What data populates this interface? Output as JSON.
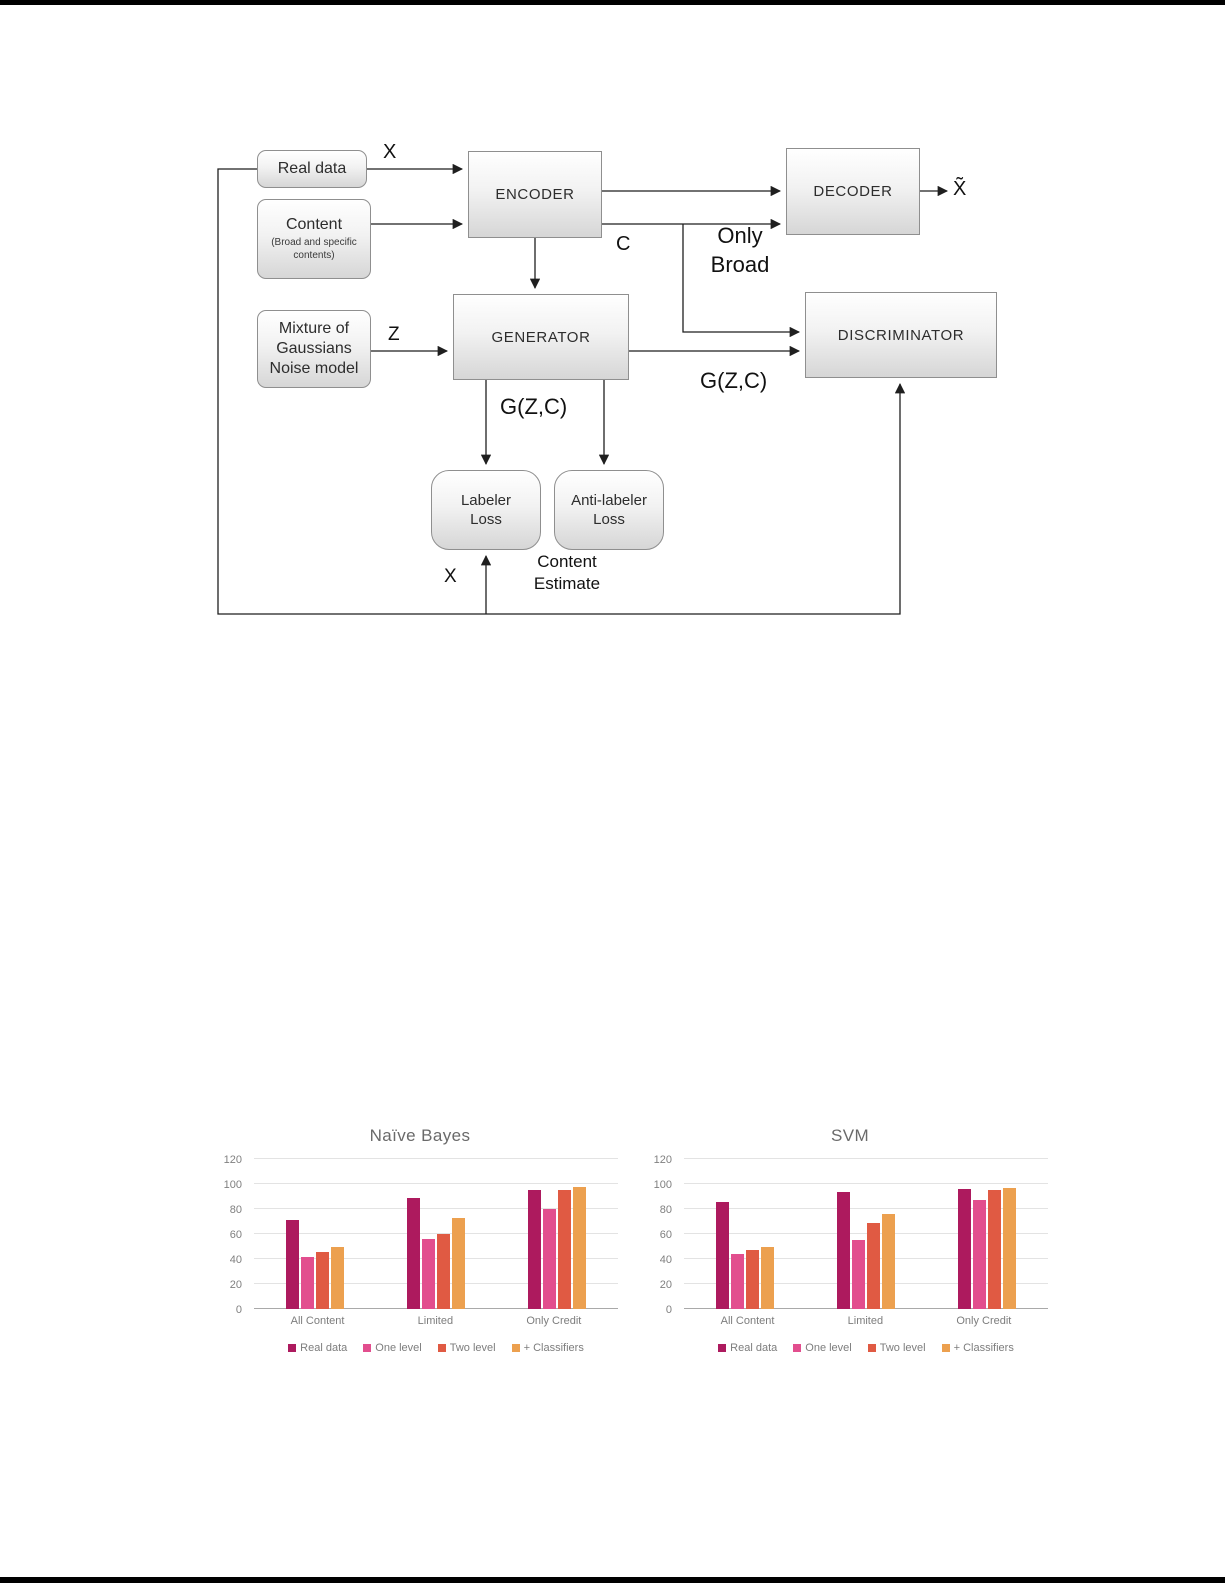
{
  "diagram": {
    "boxes": {
      "real_data": {
        "label": "Real data"
      },
      "content": {
        "title": "Content",
        "subtitle": "(Broad and specific contents)"
      },
      "encoder": {
        "label": "ENCODER"
      },
      "decoder": {
        "label": "DECODER"
      },
      "mixture": {
        "label": "Mixture of Gaussians Noise model"
      },
      "generator": {
        "label": "GENERATOR"
      },
      "discriminator": {
        "label": "DISCRIMINATOR"
      },
      "labeler_loss": {
        "label": "Labeler\nLoss"
      },
      "anti_labeler_loss": {
        "label": "Anti-labeler\nLoss"
      }
    },
    "labels": {
      "x_top": "X",
      "x_tilde": "X̃",
      "c": "C",
      "only_broad": "Only\nBroad",
      "z": "Z",
      "g_zc_generator": "G(Z,C)",
      "g_zc_discriminator": "G(Z,C)",
      "content_estimate": "Content\nEstimate",
      "x_bottom": "X"
    }
  },
  "chart_data": [
    {
      "type": "bar",
      "title": "Naïve Bayes",
      "categories": [
        "All Content",
        "Limited",
        "Only Credit"
      ],
      "series": [
        {
          "name": "Real data",
          "color": "#ad1a5e",
          "values": [
            71,
            89,
            95
          ]
        },
        {
          "name": "One level",
          "color": "#e24e8e",
          "values": [
            42,
            56,
            80
          ]
        },
        {
          "name": "Two level",
          "color": "#e05a43",
          "values": [
            46,
            60,
            95
          ]
        },
        {
          "name": "+ Classifiers",
          "color": "#eca04f",
          "values": [
            50,
            73,
            98
          ]
        }
      ],
      "xlabel": "",
      "ylabel": "",
      "ylim": [
        0,
        120
      ],
      "ytick_step": 20,
      "grid": true,
      "legend_position": "bottom"
    },
    {
      "type": "bar",
      "title": "SVM",
      "categories": [
        "All Content",
        "Limited",
        "Only Credit"
      ],
      "series": [
        {
          "name": "Real data",
          "color": "#ad1a5e",
          "values": [
            86,
            94,
            96
          ]
        },
        {
          "name": "One level",
          "color": "#e24e8e",
          "values": [
            44,
            55,
            87
          ]
        },
        {
          "name": "Two level",
          "color": "#e05a43",
          "values": [
            47,
            69,
            95
          ]
        },
        {
          "name": "+ Classifiers",
          "color": "#eca04f",
          "values": [
            50,
            76,
            97
          ]
        }
      ],
      "xlabel": "",
      "ylabel": "",
      "ylim": [
        0,
        120
      ],
      "ytick_step": 20,
      "grid": true,
      "legend_position": "bottom"
    }
  ]
}
